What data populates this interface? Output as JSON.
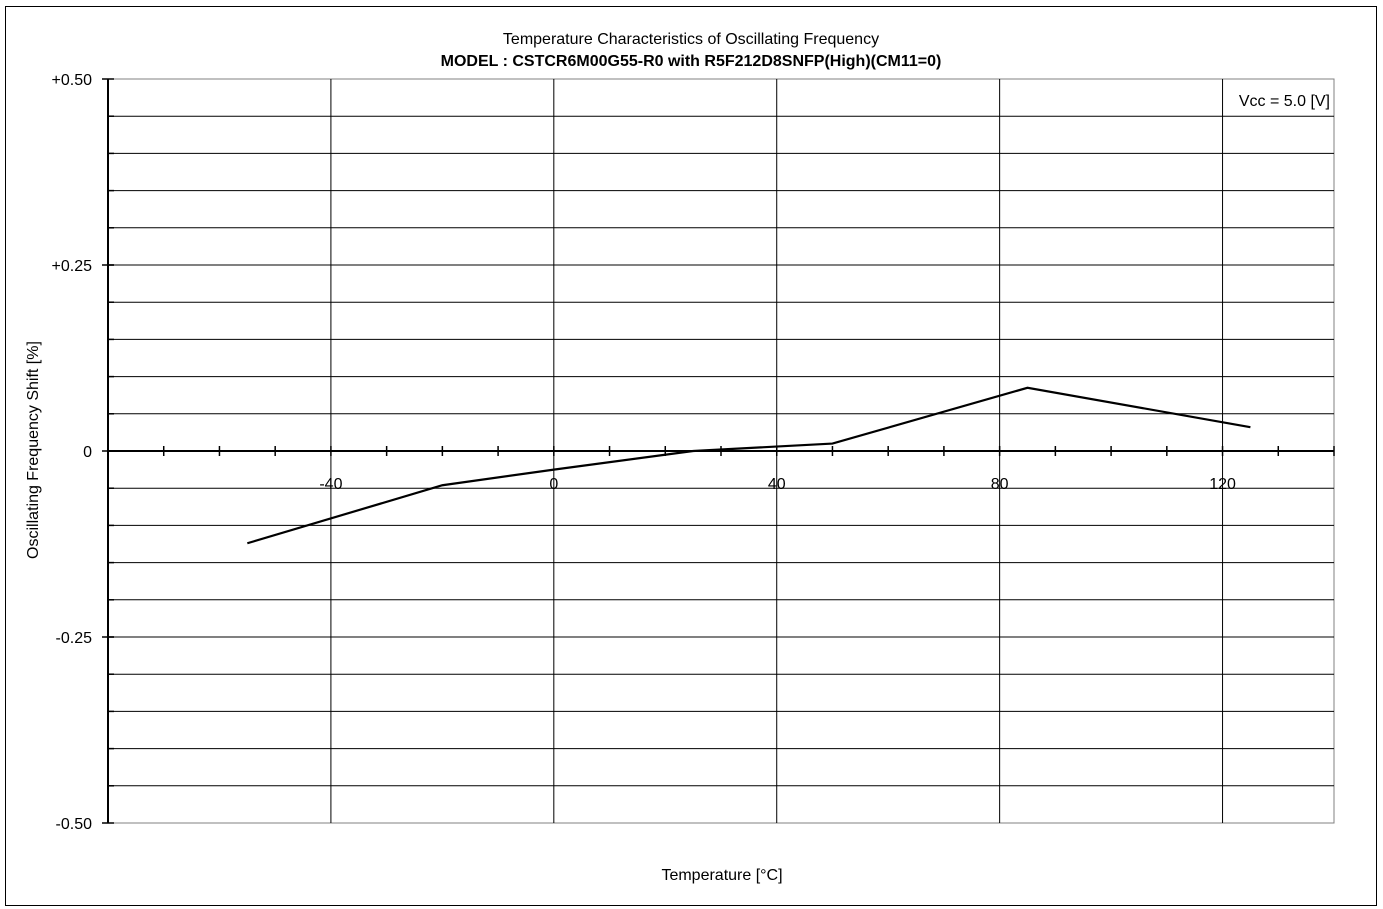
{
  "chart_data": {
    "type": "line",
    "title": "Temperature Characteristics of Oscillating Frequency",
    "subtitle": "MODEL : CSTCR6M00G55-R0 with R5F212D8SNFP(High)(CM11=0)",
    "xlabel": "Temperature [°C]",
    "ylabel": "Oscillating Frequency Shift [%]",
    "xlim": [
      -80,
      140
    ],
    "ylim": [
      -0.5,
      0.5
    ],
    "x_ticks": [
      -40,
      0,
      40,
      80,
      120
    ],
    "x_tick_labels": [
      "-40",
      "0",
      "40",
      "80",
      "120"
    ],
    "y_ticks": [
      0.5,
      0.25,
      0,
      -0.25,
      -0.5
    ],
    "y_tick_labels": [
      "+0.50",
      "+0.25",
      "0",
      "-0.25",
      "-0.50"
    ],
    "annotation": "Vcc = 5.0 [V]",
    "grid": true,
    "series": [
      {
        "x": [
          -55,
          -20,
          0,
          25,
          50,
          85,
          125
        ],
        "y": [
          -0.124,
          -0.046,
          -0.025,
          0.0,
          0.01,
          0.085,
          0.032
        ]
      }
    ]
  }
}
